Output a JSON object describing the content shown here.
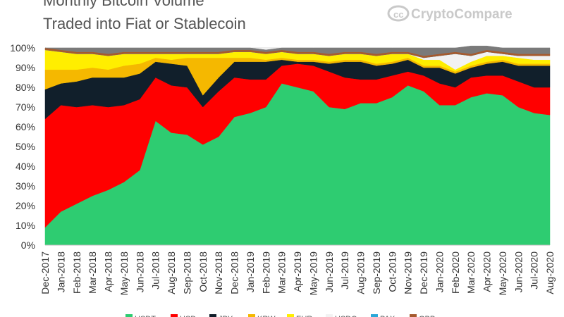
{
  "brand": {
    "name_a": "Crypto",
    "name_b": "Compare"
  },
  "chart_data": {
    "type": "area",
    "stacked": true,
    "title": "Monthly Bitcoin Volume",
    "subtitle": "Traded into Fiat or Stablecoin",
    "xlabel": "",
    "ylabel": "",
    "ylim": [
      0,
      100
    ],
    "y_ticks": [
      "0%",
      "10%",
      "20%",
      "30%",
      "40%",
      "50%",
      "60%",
      "70%",
      "80%",
      "90%",
      "100%"
    ],
    "grid": true,
    "legend_position": "bottom",
    "x": [
      "Dec-2017",
      "Jan-2018",
      "Feb-2018",
      "Mar-2018",
      "Apr-2018",
      "May-2018",
      "Jun-2018",
      "Jul-2018",
      "Aug-2018",
      "Sep-2018",
      "Oct-2018",
      "Nov-2018",
      "Dec-2018",
      "Jan-2019",
      "Feb-2019",
      "Mar-2019",
      "Apr-2019",
      "May-2019",
      "Jun-2019",
      "Jul-2019",
      "Aug-2019",
      "Sep-2019",
      "Oct-2019",
      "Nov-2019",
      "Dec-2019",
      "Jan-2020",
      "Feb-2020",
      "Mar-2020",
      "Apr-2020",
      "May-2020",
      "Jun-2020",
      "Jul-2020",
      "Aug-2020"
    ],
    "series": [
      {
        "name": "USDT",
        "color": "#2ecc71",
        "values": [
          9,
          17,
          21,
          25,
          28,
          32,
          38,
          63,
          57,
          56,
          51,
          55,
          65,
          67,
          70,
          82,
          80,
          78,
          70,
          69,
          72,
          72,
          75,
          81,
          78,
          71,
          71,
          75,
          77,
          76,
          70,
          67,
          66
        ]
      },
      {
        "name": "USD",
        "color": "#ff0000",
        "values": [
          55,
          54,
          49,
          46,
          42,
          39,
          36,
          22,
          24,
          24,
          19,
          23,
          20,
          17,
          14,
          9,
          12,
          13,
          18,
          16,
          12,
          12,
          11,
          7,
          8,
          11,
          9,
          10,
          9,
          10,
          13,
          13,
          14
        ]
      },
      {
        "name": "JPY",
        "color": "#111f2b",
        "values": [
          15,
          11,
          13,
          14,
          15,
          14,
          13,
          8,
          11,
          11,
          6,
          7,
          8,
          9,
          9,
          3,
          1,
          2,
          4,
          8,
          9,
          7,
          6,
          6,
          4,
          8,
          7,
          5,
          6,
          7,
          8,
          11,
          11
        ]
      },
      {
        "name": "KRW",
        "color": "#f5b800",
        "values": [
          10,
          7,
          6,
          5,
          4,
          6,
          5,
          2,
          2,
          4,
          19,
          10,
          2,
          2,
          1,
          1,
          1,
          1,
          1,
          1,
          1,
          1,
          1,
          1,
          1,
          1,
          1,
          1,
          1,
          1,
          1,
          1,
          1
        ]
      },
      {
        "name": "EUR",
        "color": "#ffee00",
        "values": [
          10,
          9,
          8,
          7,
          7,
          6,
          5,
          2,
          3,
          2,
          2,
          2,
          3,
          3,
          3,
          3,
          3,
          3,
          3,
          3,
          3,
          4,
          4,
          2,
          3,
          3,
          1,
          2,
          3,
          2,
          3,
          2,
          2
        ]
      },
      {
        "name": "USDC",
        "color": "#f2f2f2",
        "values": [
          0,
          0,
          0,
          0,
          0,
          0,
          0,
          0,
          0,
          0,
          0,
          0,
          0,
          0,
          0,
          0,
          0,
          0,
          0,
          0,
          0,
          0,
          0,
          0,
          1,
          2,
          8,
          3,
          2,
          1,
          1,
          2,
          2
        ]
      },
      {
        "name": "PAX",
        "color": "#2aa8d8",
        "values": [
          0,
          0,
          0,
          0,
          0,
          0,
          0,
          0,
          0,
          0,
          0,
          0,
          0,
          0,
          0,
          0,
          0,
          0,
          0,
          0,
          0,
          0,
          0,
          0,
          0,
          0,
          0,
          0,
          0,
          0,
          0,
          0,
          0
        ]
      },
      {
        "name": "GBP",
        "color": "#a65a2e",
        "values": [
          1,
          1,
          1,
          1,
          1,
          1,
          1,
          1,
          1,
          1,
          1,
          1,
          1,
          1,
          1,
          1,
          1,
          1,
          1,
          1,
          1,
          1,
          1,
          1,
          1,
          1,
          1,
          1,
          1,
          1,
          1,
          1,
          1
        ]
      },
      {
        "name": "",
        "color": "#7a7a7a",
        "values": [
          0,
          1,
          2,
          2,
          3,
          2,
          2,
          2,
          2,
          2,
          2,
          2,
          1,
          1,
          1,
          1,
          2,
          2,
          3,
          2,
          2,
          3,
          2,
          2,
          4,
          3,
          2,
          4,
          2,
          2,
          3,
          3,
          3
        ]
      }
    ]
  }
}
